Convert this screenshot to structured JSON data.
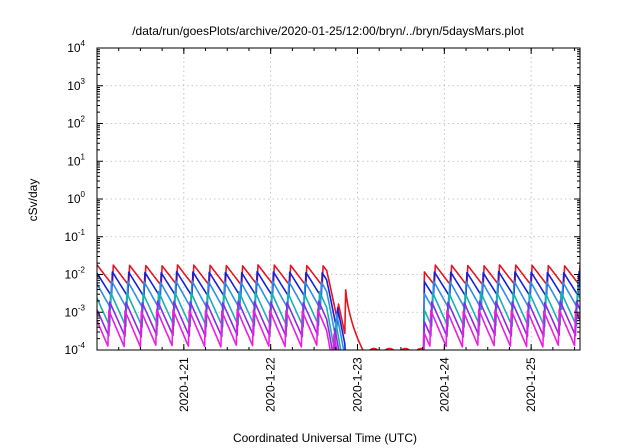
{
  "chart_data": {
    "type": "line",
    "title": "/data/run/goesPlots/archive/2020-01-25/12:00/bryn/../bryn/5daysMars.plot",
    "xlabel": "Coordinated Universal Time (UTC)",
    "ylabel": "cSv/day",
    "yscale": "log",
    "ylim": [
      0.0001,
      10000
    ],
    "xlim": [
      "2020-01-20 00:00",
      "2020-01-25 13:30"
    ],
    "grid": true,
    "legend": "none",
    "x_ticks": [
      {
        "label": "2020-1-21",
        "value": "2020-01-21 00:00"
      },
      {
        "label": "2020-1-22",
        "value": "2020-01-22 00:00"
      },
      {
        "label": "2020-1-23",
        "value": "2020-01-23 00:00"
      },
      {
        "label": "2020-1-24",
        "value": "2020-01-24 00:00"
      },
      {
        "label": "2020-1-25",
        "value": "2020-01-25 00:00"
      }
    ],
    "y_ticks": [
      {
        "base": "10",
        "exp": "-4",
        "value": 0.0001
      },
      {
        "base": "10",
        "exp": "-3",
        "value": 0.001
      },
      {
        "base": "10",
        "exp": "-2",
        "value": 0.01
      },
      {
        "base": "10",
        "exp": "-1",
        "value": 0.1
      },
      {
        "base": "10",
        "exp": "0",
        "value": 1
      },
      {
        "base": "10",
        "exp": "1",
        "value": 10
      },
      {
        "base": "10",
        "exp": "2",
        "value": 100
      },
      {
        "base": "10",
        "exp": "3",
        "value": 1000
      },
      {
        "base": "10",
        "exp": "4",
        "value": 10000
      }
    ],
    "sawtooth_period_hours": 4.45,
    "gap": {
      "start": "2020-01-22 20:30",
      "end": "2020-01-23 18:20"
    },
    "series": [
      {
        "color": "#e8141e",
        "peak": 0.018,
        "trough": 0.005,
        "gap_level": 0.0001
      },
      {
        "color": "#1520d8",
        "peak": 0.012,
        "trough": 0.0025
      },
      {
        "color": "#2f8fe8",
        "peak": 0.007,
        "trough": 0.0012
      },
      {
        "color": "#17b0b0",
        "peak": 0.0035,
        "trough": 0.0004
      },
      {
        "color": "#8a2be2",
        "peak": 0.002,
        "trough": 0.00022
      },
      {
        "color": "#ee1ee0",
        "peak": 0.0012,
        "trough": 0.00012
      }
    ]
  }
}
